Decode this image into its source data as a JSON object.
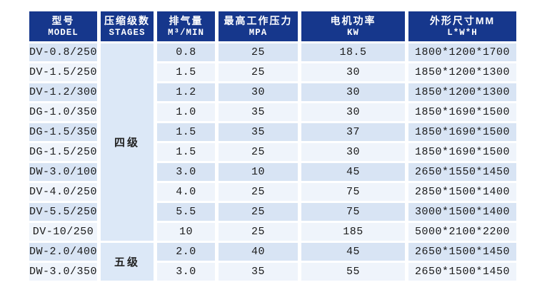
{
  "table": {
    "columns": [
      {
        "zh": "型号",
        "en": "MODEL"
      },
      {
        "zh": "压缩级数",
        "en": "STAGES"
      },
      {
        "zh": "排气量",
        "en": "M³/MIN"
      },
      {
        "zh": "最高工作压力",
        "en": "MPA"
      },
      {
        "zh": "电机功率",
        "en": "KW"
      },
      {
        "zh": "外形尺寸MM",
        "en": "L*W*H"
      }
    ],
    "stage_groups": [
      {
        "label": "四级",
        "row_span": 10
      },
      {
        "label": "五级",
        "row_span": 2
      }
    ],
    "rows": [
      {
        "model": "DV-0.8/250",
        "displacement": "0.8",
        "pressure": "25",
        "power": "18.5",
        "dimensions": "1800*1200*1700"
      },
      {
        "model": "DV-1.5/250",
        "displacement": "1.5",
        "pressure": "25",
        "power": "30",
        "dimensions": "1850*1200*1300"
      },
      {
        "model": "DV-1.2/300",
        "displacement": "1.2",
        "pressure": "30",
        "power": "30",
        "dimensions": "1850*1200*1300"
      },
      {
        "model": "DG-1.0/350",
        "displacement": "1.0",
        "pressure": "35",
        "power": "30",
        "dimensions": "1850*1690*1500"
      },
      {
        "model": "DG-1.5/350",
        "displacement": "1.5",
        "pressure": "35",
        "power": "37",
        "dimensions": "1850*1690*1500"
      },
      {
        "model": "DG-1.5/250",
        "displacement": "1.5",
        "pressure": "25",
        "power": "30",
        "dimensions": "1850*1690*1500"
      },
      {
        "model": "DW-3.0/100",
        "displacement": "3.0",
        "pressure": "10",
        "power": "45",
        "dimensions": "2650*1550*1450"
      },
      {
        "model": "DV-4.0/250",
        "displacement": "4.0",
        "pressure": "25",
        "power": "75",
        "dimensions": "2850*1500*1400"
      },
      {
        "model": "DV-5.5/250",
        "displacement": "5.5",
        "pressure": "25",
        "power": "75",
        "dimensions": "3000*1500*1400"
      },
      {
        "model": "DV-10/250",
        "displacement": "10",
        "pressure": "25",
        "power": "185",
        "dimensions": "5000*2100*2200"
      },
      {
        "model": "DW-2.0/400",
        "displacement": "2.0",
        "pressure": "40",
        "power": "45",
        "dimensions": "2650*1500*1450"
      },
      {
        "model": "DW-3.0/350",
        "displacement": "3.0",
        "pressure": "35",
        "power": "55",
        "dimensions": "2650*1500*1450"
      }
    ]
  },
  "colors": {
    "header_bg": "#16378c",
    "header_text": "#ffffff",
    "row_odd_bg": "#d8e4f4",
    "row_even_bg": "#eff4fb",
    "stage_cell_bg": "#dce8f7",
    "body_text": "#1a1a1a",
    "page_bg": "#ffffff"
  }
}
